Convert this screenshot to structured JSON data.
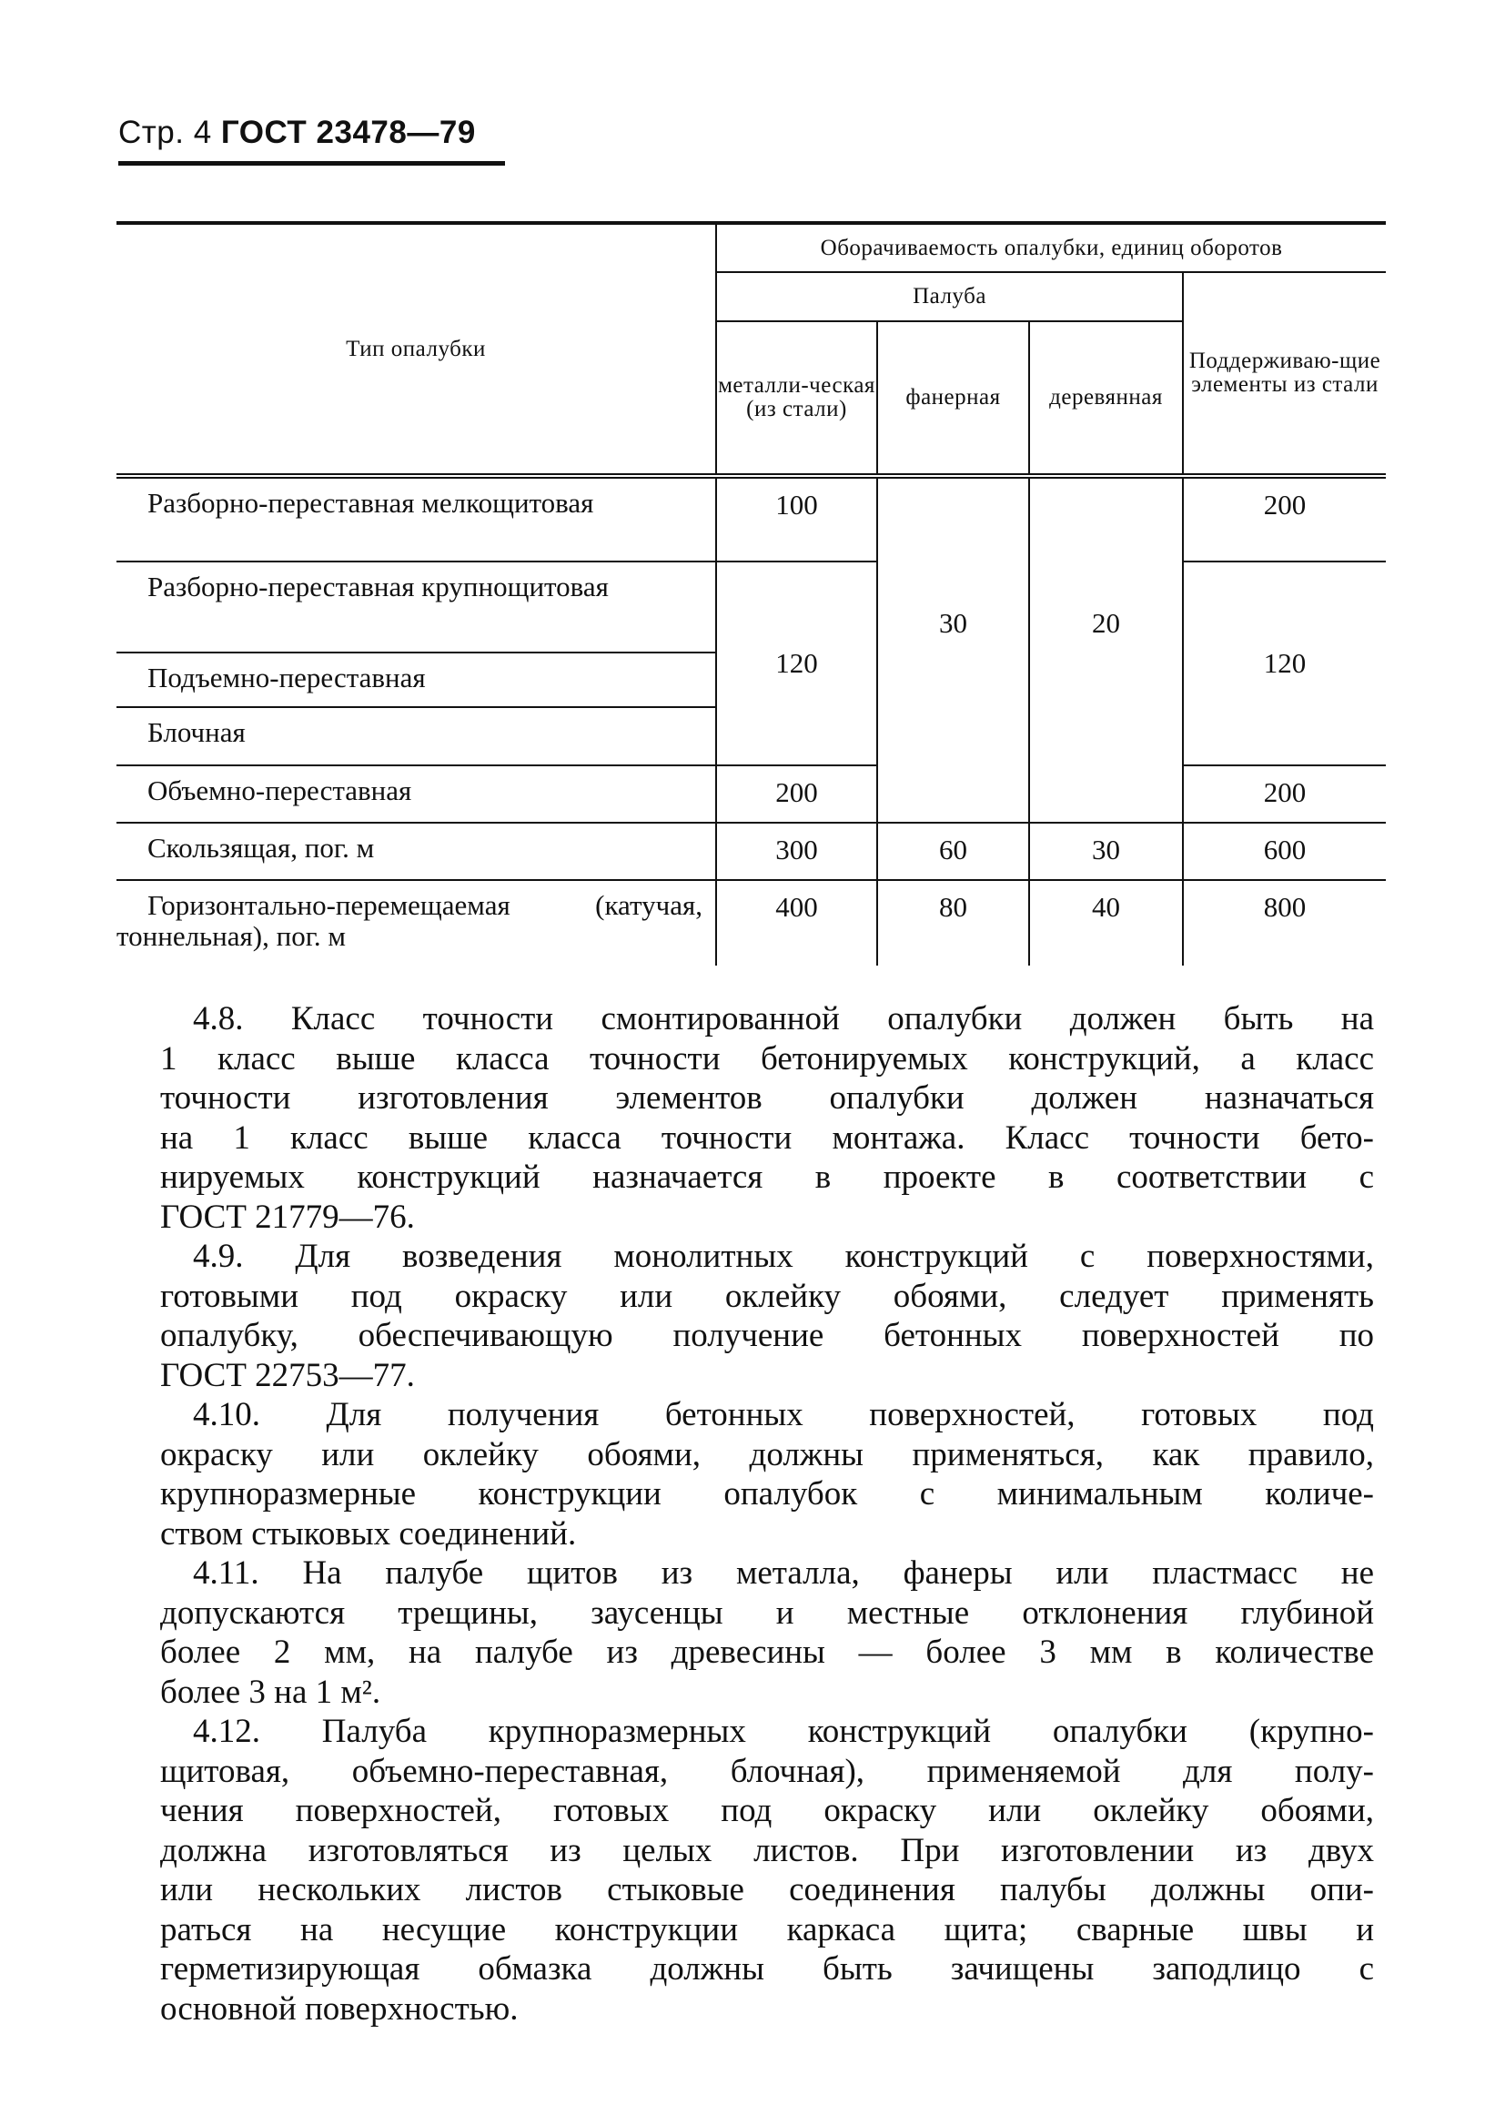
{
  "header": {
    "page": "Стр. 4",
    "standard": "ГОСТ 23478—79"
  },
  "table": {
    "col_type": "Тип опалубки",
    "group_title": "Оборачиваемость опалубки, единиц оборотов",
    "subgroup_title": "Палуба",
    "col_metal": "металли-ческая (из стали)",
    "col_plywood": "фанерная",
    "col_wood": "деревянная",
    "col_support": "Поддерживаю-щие элементы из стали",
    "rows": [
      {
        "type": "Разборно-переставная мелкощитовая",
        "metal": "100",
        "support": "200"
      },
      {
        "type": "Разборно-переставная крупнощитовая"
      },
      {
        "type": "Подъемно-переставная"
      },
      {
        "type": "Блочная"
      },
      {
        "type": "Объемно-переставная",
        "metal": "200",
        "support": "200"
      },
      {
        "type": "Скользящая, пог. м",
        "metal": "300",
        "plywood": "60",
        "wood": "30",
        "support": "600"
      },
      {
        "type": "Горизонтально-перемещаемая (катучая, тоннельная), пог. м",
        "metal": "400",
        "plywood": "80",
        "wood": "40",
        "support": "800"
      }
    ],
    "merged": {
      "metal_rows_2_4": "120",
      "support_rows_2_4": "120",
      "plywood_rows_1_5": "30",
      "wood_rows_1_5": "20"
    }
  },
  "paragraphs": [
    [
      "4.8. Класс точности смонтированной опалубки должен быть на",
      "1 класс выше класса точности бетонируемых конструкций, а класс",
      "точности изготовления элементов опалубки должен назначаться",
      "на 1 класс выше класса точности монтажа. Класс точности бето-",
      "нируемых конструкций назначается в проекте в соответствии с",
      "ГОСТ 21779—76."
    ],
    [
      "4.9. Для возведения монолитных конструкций с поверхностями,",
      "готовыми под окраску или оклейку обоями, следует применять",
      "опалубку, обеспечивающую получение бетонных поверхностей по",
      "ГОСТ 22753—77."
    ],
    [
      "4.10. Для получения бетонных поверхностей, готовых под",
      "окраску или оклейку обоями, должны применяться, как правило,",
      "крупноразмерные конструкции опалубок с минимальным количе-",
      "ством стыковых соединений."
    ],
    [
      "4.11. На палубе щитов из металла, фанеры или пластмасс не",
      "допускаются трещины, заусенцы и местные отклонения глубиной",
      "более 2 мм, на палубе из древесины — более 3 мм в количестве",
      "более 3 на 1 м²."
    ],
    [
      "4.12. Палуба крупноразмерных конструкций опалубки (крупно-",
      "щитовая, объемно-переставная, блочная), применяемой для полу-",
      "чения поверхностей, готовых под окраску или оклейку обоями,",
      "должна изготовляться из целых листов. При изготовлении из двух",
      "или нескольких листов стыковые соединения палубы должны опи-",
      "раться на несущие конструкции каркаса щита; сварные швы и",
      "герметизирующая обмазка должны быть зачищены заподлицо с",
      "основной поверхностью."
    ]
  ]
}
